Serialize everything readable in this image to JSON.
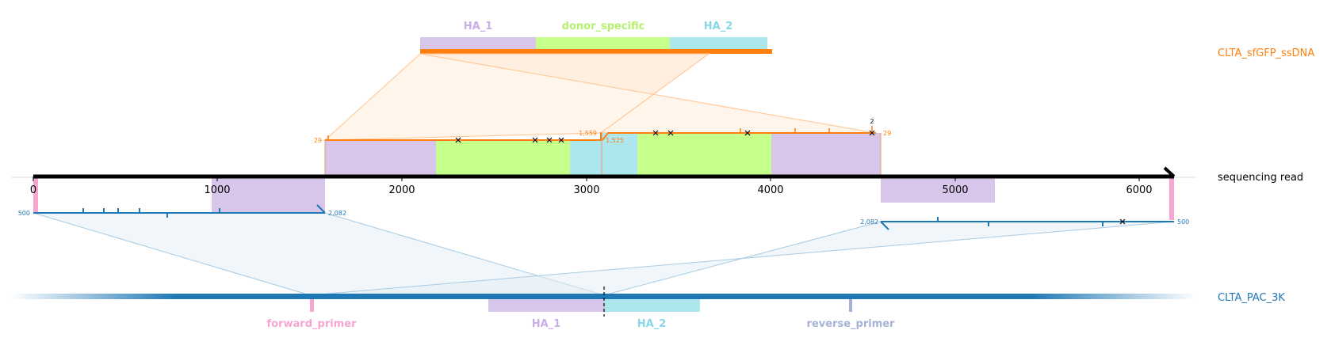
{
  "donor": {
    "name": "CLTA_sfGFP_ssDNA",
    "features": [
      {
        "label": "HA_1",
        "color": "#d7c5ea"
      },
      {
        "label": "donor_specific",
        "color": "#c6ff8c"
      },
      {
        "label": "HA_2",
        "color": "#aee6ee"
      }
    ]
  },
  "read": {
    "name": "sequencing read",
    "ticks": [
      "0",
      "1000",
      "2000",
      "3000",
      "4000",
      "5000",
      "6000"
    ]
  },
  "reference": {
    "name": "CLTA_PAC_3K",
    "features": [
      {
        "label": "forward_primer",
        "color": "#f7a6d2"
      },
      {
        "label": "HA_1",
        "color": "#d7c5ea"
      },
      {
        "label": "HA_2",
        "color": "#aee6ee"
      },
      {
        "label": "reverse_primer",
        "color": "#a5b2d6"
      }
    ]
  },
  "alignment_labels": {
    "donor_left_start": "29",
    "donor_left_end": "1,559",
    "donor_right_start": "1,525",
    "donor_right_end": "29",
    "donor_count": "2",
    "ref_left_start": "500",
    "ref_left_end": "2,082",
    "ref_right_start": "2,082",
    "ref_right_end": "500"
  },
  "colors": {
    "donor": "#ff7f0e",
    "reference": "#1f77b4",
    "read": "#000000"
  }
}
